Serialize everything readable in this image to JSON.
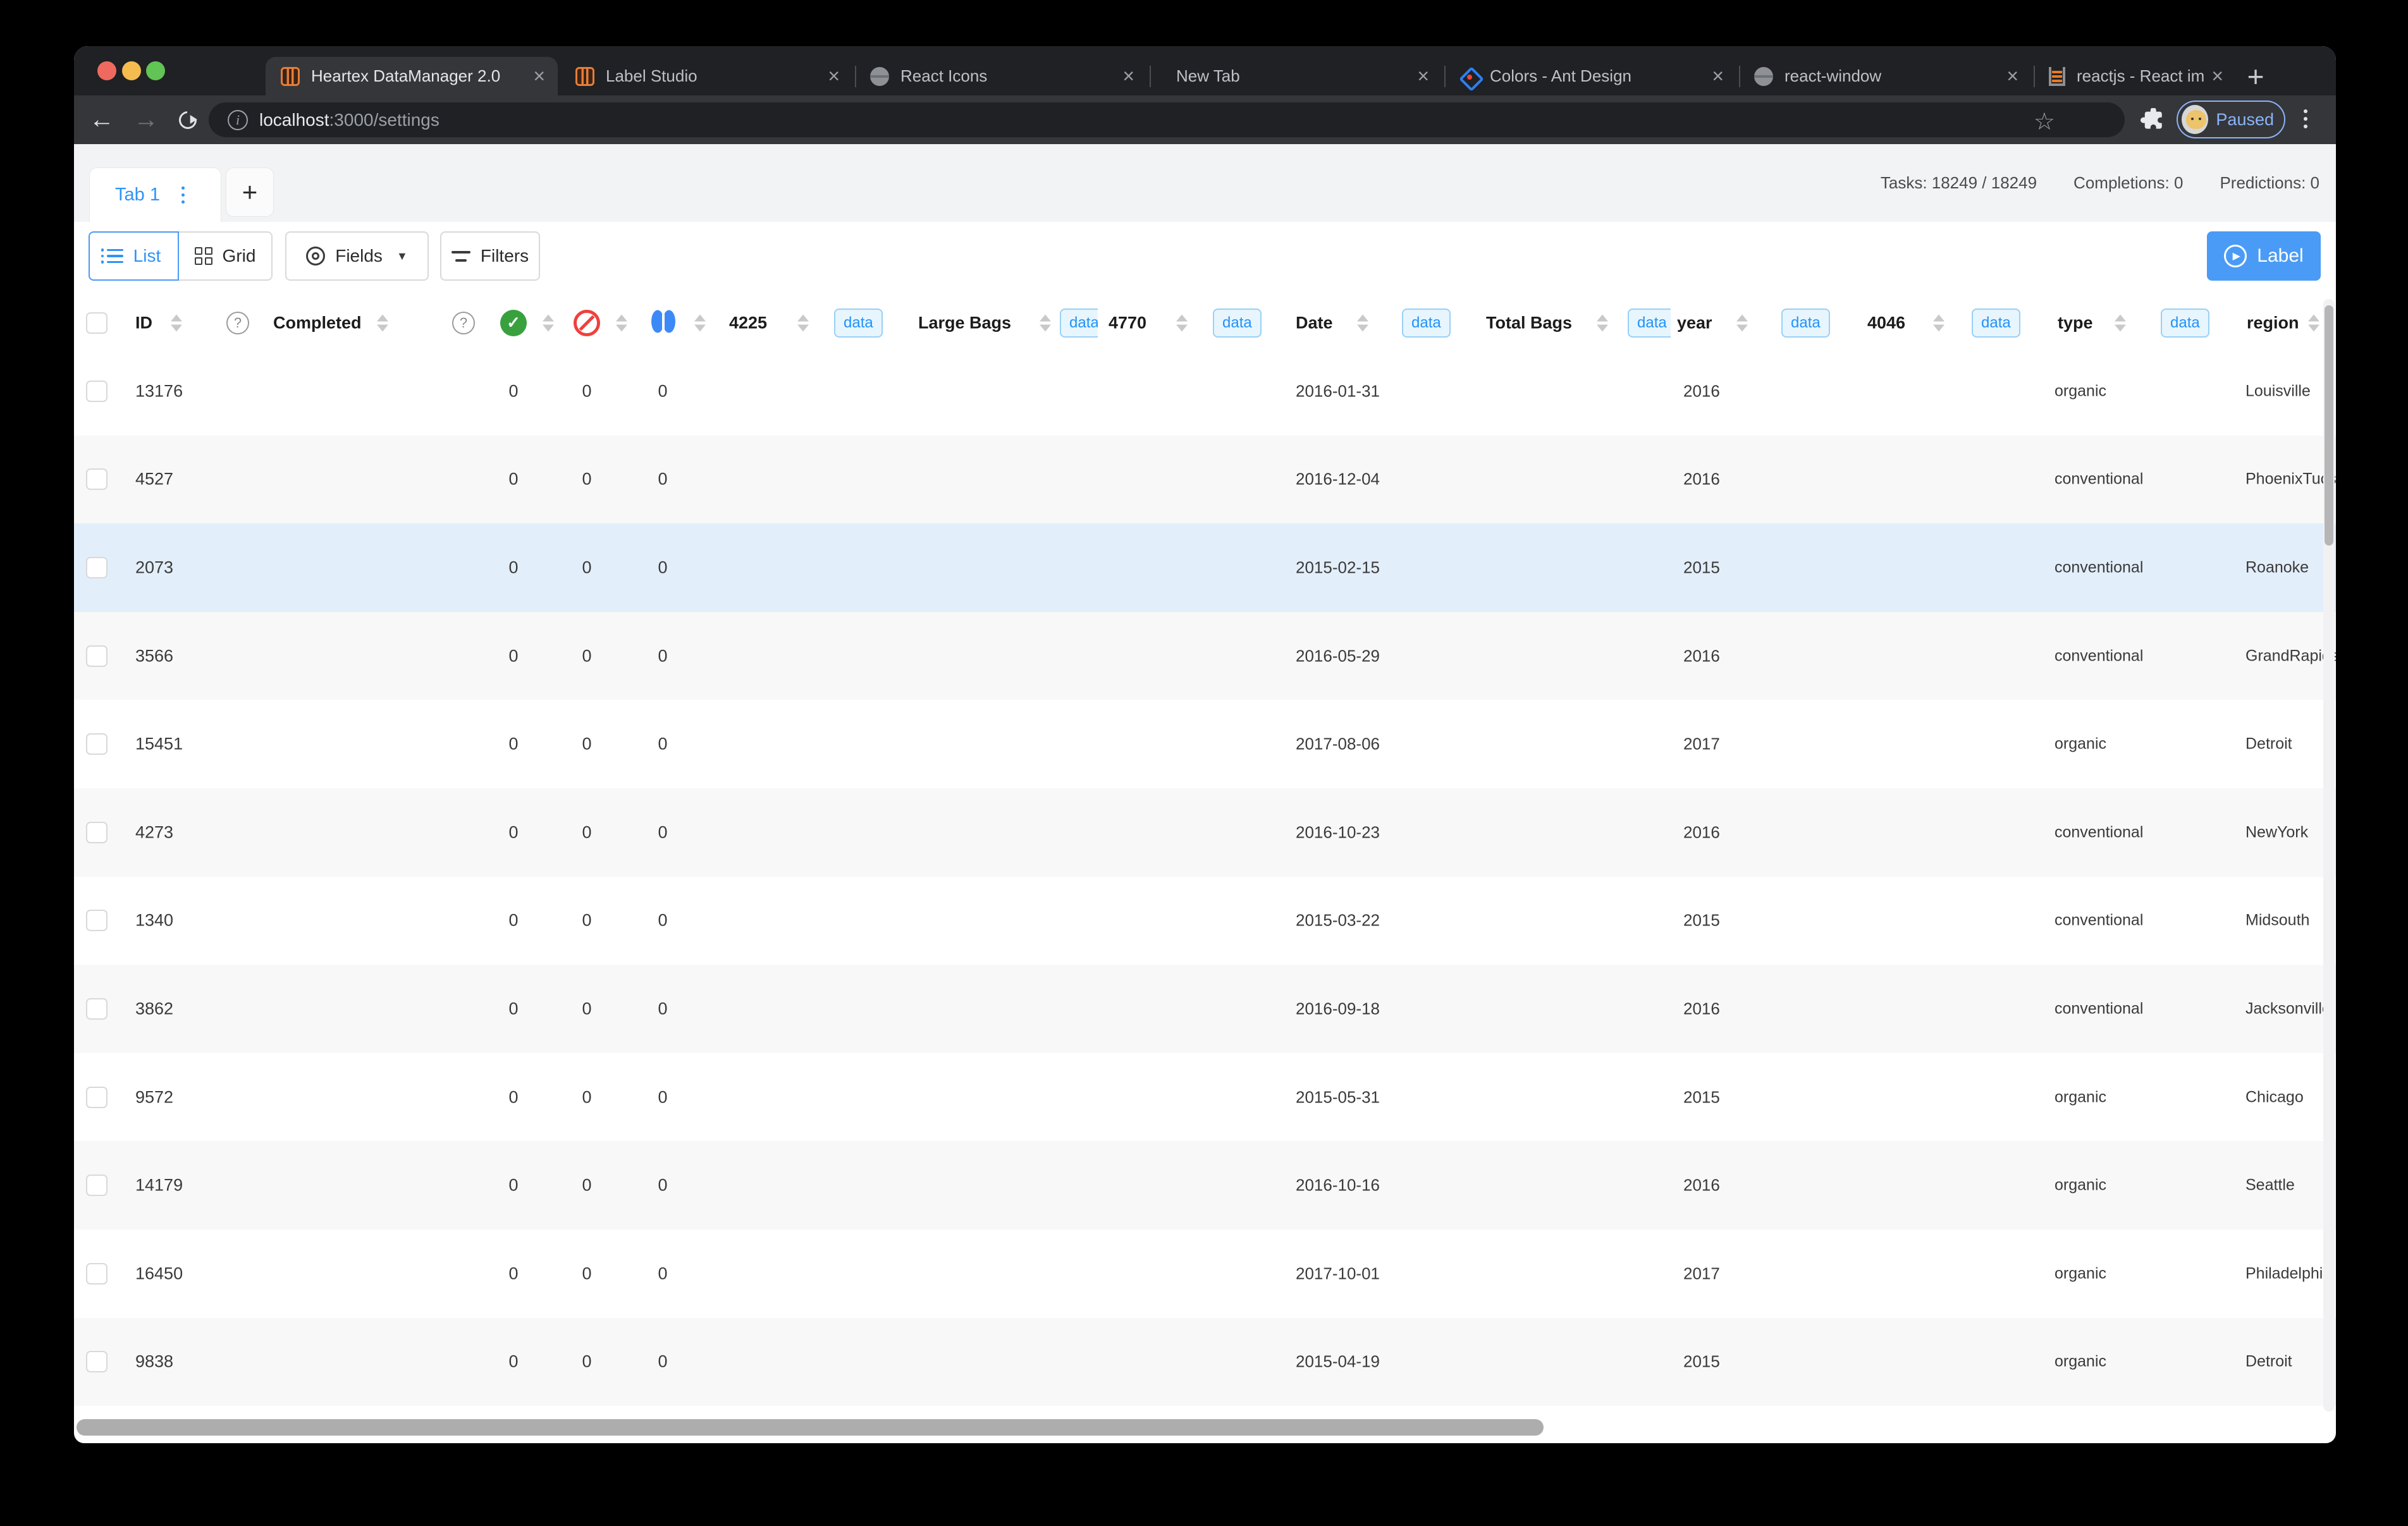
{
  "icons": {
    "close": "×",
    "plus": "+",
    "back": "←",
    "forward": "→",
    "info": "i",
    "star": "☆",
    "question": "?",
    "check": "✓",
    "caret_down": "▼",
    "play": "▶"
  },
  "browser": {
    "tabs": [
      {
        "title": "Heartex DataManager 2.0"
      },
      {
        "title": "Label Studio"
      },
      {
        "title": "React Icons"
      },
      {
        "title": "New Tab"
      },
      {
        "title": "Colors - Ant Design"
      },
      {
        "title": "react-window"
      },
      {
        "title": "reactjs - React image gallery"
      }
    ],
    "address": {
      "host": "localhost",
      "path": ":3000/settings"
    },
    "profile_badge": "Paused"
  },
  "workspace": {
    "tab_label": "Tab 1",
    "stats": [
      "Tasks: 18249 / 18249",
      "Completions: 0",
      "Predictions: 0"
    ]
  },
  "toolbar": {
    "list": "List",
    "grid": "Grid",
    "fields": "Fields",
    "filters": "Filters",
    "label_button": "Label"
  },
  "table": {
    "badge": "data",
    "headers": {
      "id": "ID",
      "completed": "Completed",
      "col_4225": "4225",
      "large_bags": "Large Bags",
      "col_4770": "4770",
      "date": "Date",
      "total_bags": "Total Bags",
      "year": "year",
      "col_4046": "4046",
      "type": "type",
      "region": "region"
    },
    "rows": [
      {
        "id": "13176",
        "ann": "0",
        "skip": "0",
        "pred": "0",
        "date": "2016-01-31",
        "year": "2016",
        "type": "organic",
        "region": "Louisville"
      },
      {
        "id": "4527",
        "ann": "0",
        "skip": "0",
        "pred": "0",
        "date": "2016-12-04",
        "year": "2016",
        "type": "conventional",
        "region": "PhoenixTucson"
      },
      {
        "id": "2073",
        "ann": "0",
        "skip": "0",
        "pred": "0",
        "date": "2015-02-15",
        "year": "2015",
        "type": "conventional",
        "region": "Roanoke",
        "selected": true
      },
      {
        "id": "3566",
        "ann": "0",
        "skip": "0",
        "pred": "0",
        "date": "2016-05-29",
        "year": "2016",
        "type": "conventional",
        "region": "GrandRapids"
      },
      {
        "id": "15451",
        "ann": "0",
        "skip": "0",
        "pred": "0",
        "date": "2017-08-06",
        "year": "2017",
        "type": "organic",
        "region": "Detroit"
      },
      {
        "id": "4273",
        "ann": "0",
        "skip": "0",
        "pred": "0",
        "date": "2016-10-23",
        "year": "2016",
        "type": "conventional",
        "region": "NewYork"
      },
      {
        "id": "1340",
        "ann": "0",
        "skip": "0",
        "pred": "0",
        "date": "2015-03-22",
        "year": "2015",
        "type": "conventional",
        "region": "Midsouth"
      },
      {
        "id": "3862",
        "ann": "0",
        "skip": "0",
        "pred": "0",
        "date": "2016-09-18",
        "year": "2016",
        "type": "conventional",
        "region": "Jacksonville"
      },
      {
        "id": "9572",
        "ann": "0",
        "skip": "0",
        "pred": "0",
        "date": "2015-05-31",
        "year": "2015",
        "type": "organic",
        "region": "Chicago"
      },
      {
        "id": "14179",
        "ann": "0",
        "skip": "0",
        "pred": "0",
        "date": "2016-10-16",
        "year": "2016",
        "type": "organic",
        "region": "Seattle"
      },
      {
        "id": "16450",
        "ann": "0",
        "skip": "0",
        "pred": "0",
        "date": "2017-10-01",
        "year": "2017",
        "type": "organic",
        "region": "Philadelphia"
      },
      {
        "id": "9838",
        "ann": "0",
        "skip": "0",
        "pred": "0",
        "date": "2015-04-19",
        "year": "2015",
        "type": "organic",
        "region": "Detroit"
      }
    ]
  }
}
